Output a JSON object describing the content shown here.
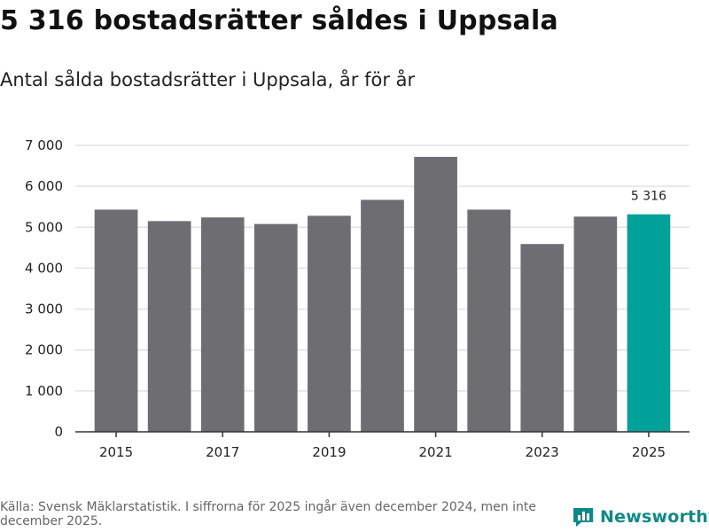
{
  "title": "5 316 bostadsrätter såldes i Uppsala",
  "subtitle": "Antal sålda bostadsrätter i Uppsala, år för år",
  "source": "Källa: Svensk Mäklarstatistik. I siffrorna för 2025 ingår även december 2024, men inte december 2025.",
  "brand": {
    "name": "Newsworthy",
    "logo_icon": "newsworthy-logo-icon"
  },
  "colors": {
    "bar": "#6e6d72",
    "highlight": "#00a199",
    "grid": "#e2e2e2",
    "axis": "#333333",
    "brand": "#0e8a86"
  },
  "chart_data": {
    "type": "bar",
    "title": "5 316 bostadsrätter såldes i Uppsala",
    "subtitle": "Antal sålda bostadsrätter i Uppsala, år för år",
    "xlabel": "",
    "ylabel": "",
    "categories": [
      "2015",
      "2016",
      "2017",
      "2018",
      "2019",
      "2020",
      "2021",
      "2022",
      "2023",
      "2024",
      "2025"
    ],
    "values": [
      5430,
      5150,
      5240,
      5080,
      5280,
      5670,
      6720,
      5430,
      4590,
      5260,
      5316
    ],
    "highlight_category": "2025",
    "data_labels": [
      {
        "category": "2025",
        "text": "5 316"
      }
    ],
    "x_tick_labels": [
      "2015",
      "2017",
      "2019",
      "2021",
      "2023",
      "2025"
    ],
    "y_ticks": [
      0,
      1000,
      2000,
      3000,
      4000,
      5000,
      6000,
      7000
    ],
    "y_tick_labels": [
      "0",
      "1 000",
      "2 000",
      "3 000",
      "4 000",
      "5 000",
      "6 000",
      "7 000"
    ],
    "ylim": [
      0,
      7000
    ],
    "grid": true,
    "legend": "none"
  }
}
